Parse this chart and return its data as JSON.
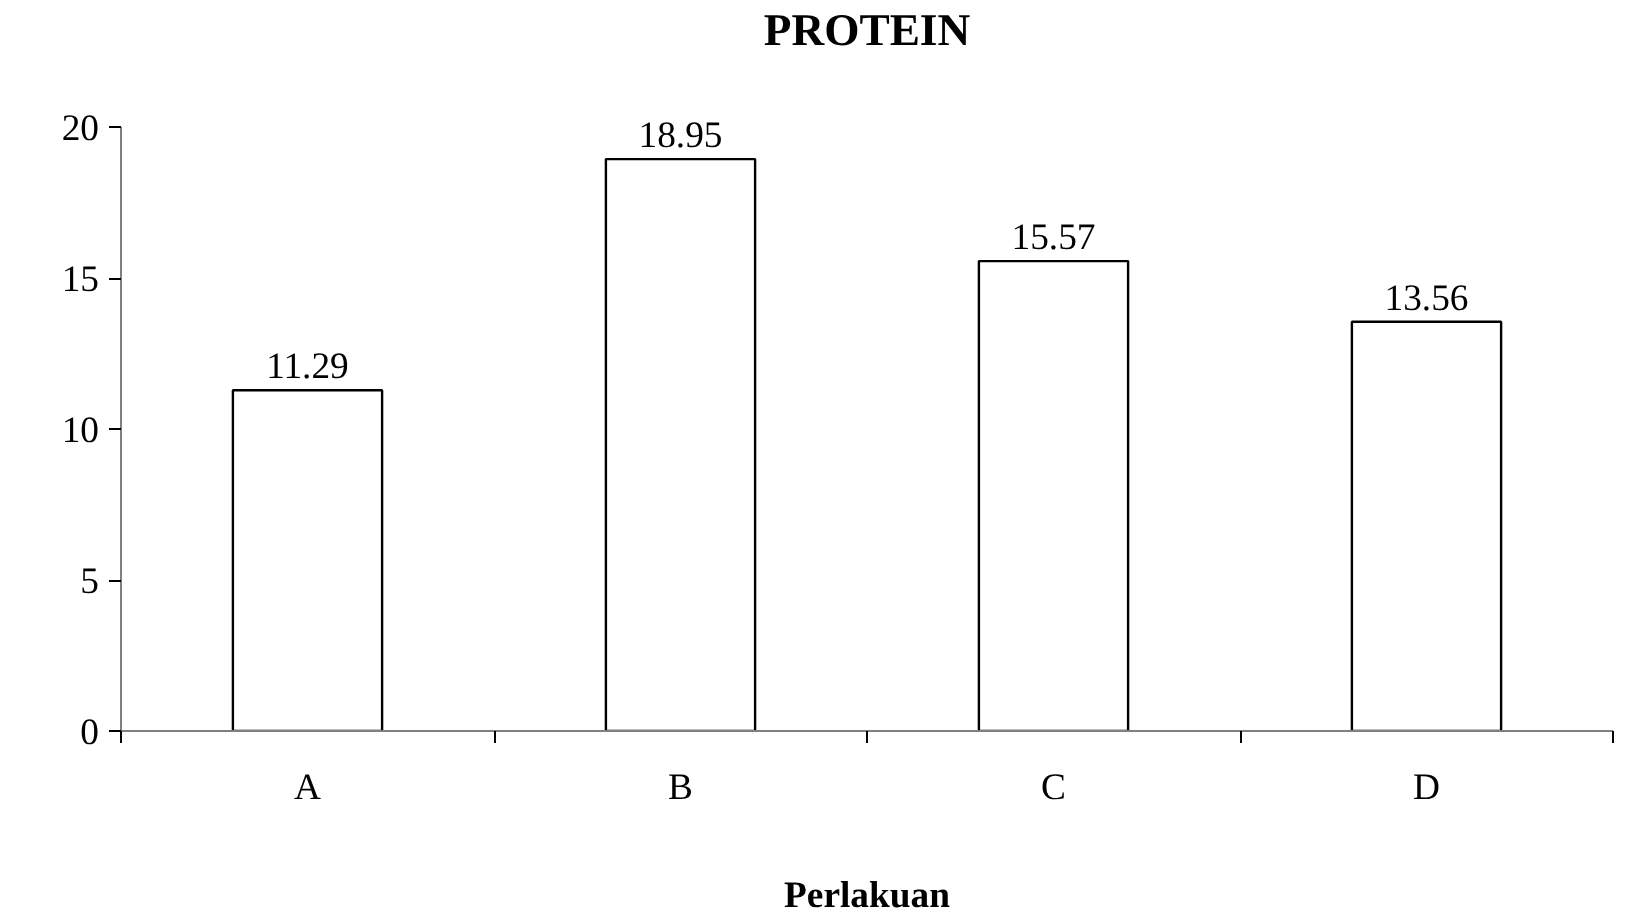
{
  "chart_data": {
    "type": "bar",
    "title": "PROTEIN",
    "xlabel": "Perlakuan",
    "categories": [
      "A",
      "B",
      "C",
      "D"
    ],
    "values": [
      11.29,
      18.95,
      15.57,
      13.56
    ],
    "color": "#ffffff",
    "ylim": [
      0,
      20
    ],
    "yticks": [
      0,
      5,
      10,
      15,
      20
    ],
    "data_labels": true,
    "grid": false
  }
}
